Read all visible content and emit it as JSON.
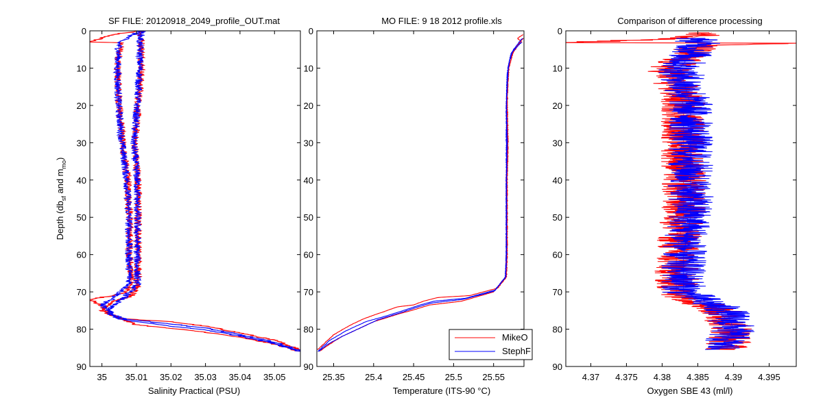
{
  "chart_data": [
    {
      "type": "line",
      "title": "SF FILE: 20120918_2049_profile_OUT.mat",
      "xlabel": "Salinity Practical (PSU)",
      "ylabel": "Depth (db",
      "ylabel_sub1": "sf",
      "ylabel_mid": " and m",
      "ylabel_sub2": "mo",
      "ylabel_end": ")",
      "xlim": [
        34.9965,
        35.0575
      ],
      "ylim": [
        0,
        90
      ],
      "y_reversed": true,
      "xticks": [
        35,
        35.01,
        35.02,
        35.03,
        35.04,
        35.05
      ],
      "xtick_labels": [
        "35",
        "35.01",
        "35.02",
        "35.03",
        "35.04",
        "35.05"
      ],
      "yticks": [
        0,
        10,
        20,
        30,
        40,
        50,
        60,
        70,
        80,
        90
      ],
      "ytick_labels": [
        "0",
        "10",
        "20",
        "30",
        "40",
        "50",
        "60",
        "70",
        "80",
        "90"
      ],
      "grid": false,
      "noise": 0.0011,
      "series": [
        {
          "color": "#ff0000",
          "points": [
            [
              35.011,
              0
            ],
            [
              35.003,
              1
            ],
            [
              34.9965,
              3
            ],
            [
              35.0055,
              3.2
            ],
            [
              35.0045,
              10
            ],
            [
              35.005,
              20
            ],
            [
              35.006,
              30
            ],
            [
              35.0075,
              40
            ],
            [
              35.008,
              50
            ],
            [
              35.008,
              60
            ],
            [
              35.0085,
              68
            ],
            [
              35.007,
              70
            ],
            [
              35.003,
              71
            ],
            [
              34.9965,
              72
            ],
            [
              35.0,
              74
            ],
            [
              35.002,
              76
            ],
            [
              35.006,
              77.2
            ],
            [
              35.02,
              78
            ],
            [
              35.03,
              79.2
            ],
            [
              35.04,
              81
            ],
            [
              35.05,
              83
            ],
            [
              35.0575,
              85.5
            ]
          ],
          "twin_points": [
            [
              35.012,
              0
            ],
            [
              35.011,
              1
            ],
            [
              35.0115,
              3
            ],
            [
              35.0115,
              10
            ],
            [
              35.0105,
              20
            ],
            [
              35.0095,
              30
            ],
            [
              35.0105,
              40
            ],
            [
              35.0105,
              50
            ],
            [
              35.0105,
              60
            ],
            [
              35.0105,
              68
            ],
            [
              35.0085,
              71
            ],
            [
              35.0035,
              72.5
            ],
            [
              35.0,
              75
            ],
            [
              35.005,
              77
            ],
            [
              35.01,
              78.8
            ],
            [
              35.02,
              79.8
            ],
            [
              35.03,
              80.8
            ],
            [
              35.04,
              82.2
            ],
            [
              35.05,
              84
            ],
            [
              35.0575,
              86
            ]
          ]
        },
        {
          "color": "#0000ff",
          "points": [
            [
              35.011,
              0
            ],
            [
              35.005,
              3
            ],
            [
              35.0045,
              10
            ],
            [
              35.0048,
              20
            ],
            [
              35.0058,
              30
            ],
            [
              35.0072,
              40
            ],
            [
              35.0078,
              50
            ],
            [
              35.0078,
              60
            ],
            [
              35.008,
              68
            ],
            [
              35.0035,
              71.5
            ],
            [
              35.0,
              73.5
            ],
            [
              35.003,
              76
            ],
            [
              35.007,
              77.3
            ],
            [
              35.02,
              78.6
            ],
            [
              35.03,
              79.7
            ],
            [
              35.04,
              81.5
            ],
            [
              35.05,
              83.5
            ],
            [
              35.0575,
              85.8
            ]
          ],
          "twin_points": [
            [
              35.0115,
              0
            ],
            [
              35.011,
              3
            ],
            [
              35.011,
              10
            ],
            [
              35.0102,
              20
            ],
            [
              35.0092,
              30
            ],
            [
              35.0102,
              40
            ],
            [
              35.0102,
              50
            ],
            [
              35.0102,
              60
            ],
            [
              35.0102,
              68
            ],
            [
              35.0065,
              71.5
            ],
            [
              35.0025,
              74
            ],
            [
              35.002,
              76
            ],
            [
              35.006,
              77.5
            ],
            [
              35.02,
              79.2
            ],
            [
              35.03,
              80.2
            ],
            [
              35.04,
              81.8
            ],
            [
              35.05,
              83.8
            ],
            [
              35.0575,
              86
            ]
          ]
        }
      ]
    },
    {
      "type": "line",
      "title": "MO FILE: 9 18 2012 profile.xls",
      "xlabel": "Temperature (ITS-90 °C)",
      "xlim": [
        25.329,
        25.588
      ],
      "ylim": [
        0,
        90
      ],
      "y_reversed": true,
      "xticks": [
        25.35,
        25.4,
        25.45,
        25.5,
        25.55
      ],
      "xtick_labels": [
        "25.35",
        "25.4",
        "25.45",
        "25.5",
        "25.55"
      ],
      "yticks": [
        0,
        10,
        20,
        30,
        40,
        50,
        60,
        70,
        80,
        90
      ],
      "ytick_labels": [
        "0",
        "10",
        "20",
        "30",
        "40",
        "50",
        "60",
        "70",
        "80",
        "90"
      ],
      "grid": false,
      "noise": 0.0006,
      "legend": {
        "placement": "bottom-right",
        "entries": [
          {
            "label": "MikeO",
            "color": "#ff0000"
          },
          {
            "label": "StephF",
            "color": "#0000ff"
          }
        ]
      },
      "series": [
        {
          "name": "MikeO",
          "color": "#ff0000",
          "points": [
            [
              25.587,
              1
            ],
            [
              25.58,
              2
            ],
            [
              25.585,
              3
            ],
            [
              25.575,
              5
            ],
            [
              25.57,
              8
            ],
            [
              25.568,
              12
            ],
            [
              25.567,
              20
            ],
            [
              25.568,
              30
            ],
            [
              25.567,
              40
            ],
            [
              25.567,
              50
            ],
            [
              25.567,
              60
            ],
            [
              25.566,
              66
            ],
            [
              25.555,
              69
            ],
            [
              25.52,
              71
            ],
            [
              25.48,
              71.5
            ],
            [
              25.462,
              72.5
            ],
            [
              25.45,
              73.5
            ],
            [
              25.43,
              74
            ],
            [
              25.41,
              75.5
            ],
            [
              25.39,
              77
            ],
            [
              25.37,
              79
            ],
            [
              25.35,
              81.5
            ],
            [
              25.34,
              83.5
            ],
            [
              25.33,
              85.5
            ]
          ],
          "twin_points": [
            [
              25.587,
              2
            ],
            [
              25.583,
              3
            ],
            [
              25.574,
              6
            ],
            [
              25.569,
              10
            ],
            [
              25.566,
              20
            ],
            [
              25.567,
              30
            ],
            [
              25.566,
              40
            ],
            [
              25.566,
              50
            ],
            [
              25.566,
              60
            ],
            [
              25.565,
              66
            ],
            [
              25.55,
              70
            ],
            [
              25.51,
              72.5
            ],
            [
              25.47,
              73.5
            ],
            [
              25.455,
              74.5
            ],
            [
              25.43,
              76
            ],
            [
              25.4,
              78
            ],
            [
              25.38,
              80
            ],
            [
              25.36,
              82
            ],
            [
              25.345,
              84
            ],
            [
              25.332,
              86
            ]
          ]
        },
        {
          "name": "StephF",
          "color": "#0000ff",
          "points": [
            [
              25.586,
              2
            ],
            [
              25.575,
              5
            ],
            [
              25.57,
              8
            ],
            [
              25.567,
              12
            ],
            [
              25.566,
              20
            ],
            [
              25.567,
              30
            ],
            [
              25.566,
              40
            ],
            [
              25.566,
              50
            ],
            [
              25.566,
              60
            ],
            [
              25.565,
              66
            ],
            [
              25.552,
              69.5
            ],
            [
              25.515,
              71.7
            ],
            [
              25.475,
              72.5
            ],
            [
              25.458,
              73.5
            ],
            [
              25.44,
              74.8
            ],
            [
              25.415,
              76.5
            ],
            [
              25.39,
              78
            ],
            [
              25.365,
              80.5
            ],
            [
              25.345,
              83
            ],
            [
              25.33,
              86
            ]
          ],
          "twin_points": [
            [
              25.585,
              3
            ],
            [
              25.572,
              6
            ],
            [
              25.568,
              10
            ],
            [
              25.566,
              20
            ],
            [
              25.566,
              30
            ],
            [
              25.566,
              40
            ],
            [
              25.566,
              50
            ],
            [
              25.566,
              60
            ],
            [
              25.565,
              66
            ],
            [
              25.551,
              69.8
            ],
            [
              25.512,
              72
            ],
            [
              25.472,
              73
            ],
            [
              25.456,
              74
            ],
            [
              25.435,
              75.5
            ],
            [
              25.405,
              77.5
            ],
            [
              25.385,
              79.5
            ],
            [
              25.36,
              82
            ],
            [
              25.343,
              84
            ],
            [
              25.331,
              86
            ]
          ]
        }
      ]
    },
    {
      "type": "line",
      "title": "Comparison of difference processing",
      "xlabel": "Oxygen SBE 43 (ml/l)",
      "xlim": [
        4.3665,
        4.3988
      ],
      "ylim": [
        0,
        90
      ],
      "y_reversed": true,
      "xticks": [
        4.37,
        4.375,
        4.38,
        4.385,
        4.39,
        4.395
      ],
      "xtick_labels": [
        "4.37",
        "4.375",
        "4.38",
        "4.385",
        "4.39",
        "4.395"
      ],
      "yticks": [
        0,
        10,
        20,
        30,
        40,
        50,
        60,
        70,
        80,
        90
      ],
      "ytick_labels": [
        "0",
        "10",
        "20",
        "30",
        "40",
        "50",
        "60",
        "70",
        "80",
        "90"
      ],
      "grid": false,
      "noise": 0.0032,
      "series": [
        {
          "color": "#ff0000",
          "points": [
            [
              4.387,
              0.5
            ],
            [
              4.384,
              2
            ],
            [
              4.3665,
              3.2
            ],
            [
              4.3988,
              3.3
            ],
            [
              4.385,
              4
            ],
            [
              4.381,
              10
            ],
            [
              4.383,
              20
            ],
            [
              4.383,
              30
            ],
            [
              4.383,
              40
            ],
            [
              4.383,
              50
            ],
            [
              4.382,
              60
            ],
            [
              4.382,
              70
            ],
            [
              4.388,
              75
            ],
            [
              4.39,
              80
            ],
            [
              4.389,
              85.5
            ]
          ]
        },
        {
          "color": "#0000ff",
          "points": [
            [
              4.385,
              2
            ],
            [
              4.385,
              4
            ],
            [
              4.3825,
              10
            ],
            [
              4.384,
              20
            ],
            [
              4.384,
              30
            ],
            [
              4.384,
              40
            ],
            [
              4.384,
              50
            ],
            [
              4.383,
              60
            ],
            [
              4.383,
              70
            ],
            [
              4.389,
              75
            ],
            [
              4.39,
              80
            ],
            [
              4.388,
              85.5
            ]
          ]
        }
      ]
    }
  ]
}
